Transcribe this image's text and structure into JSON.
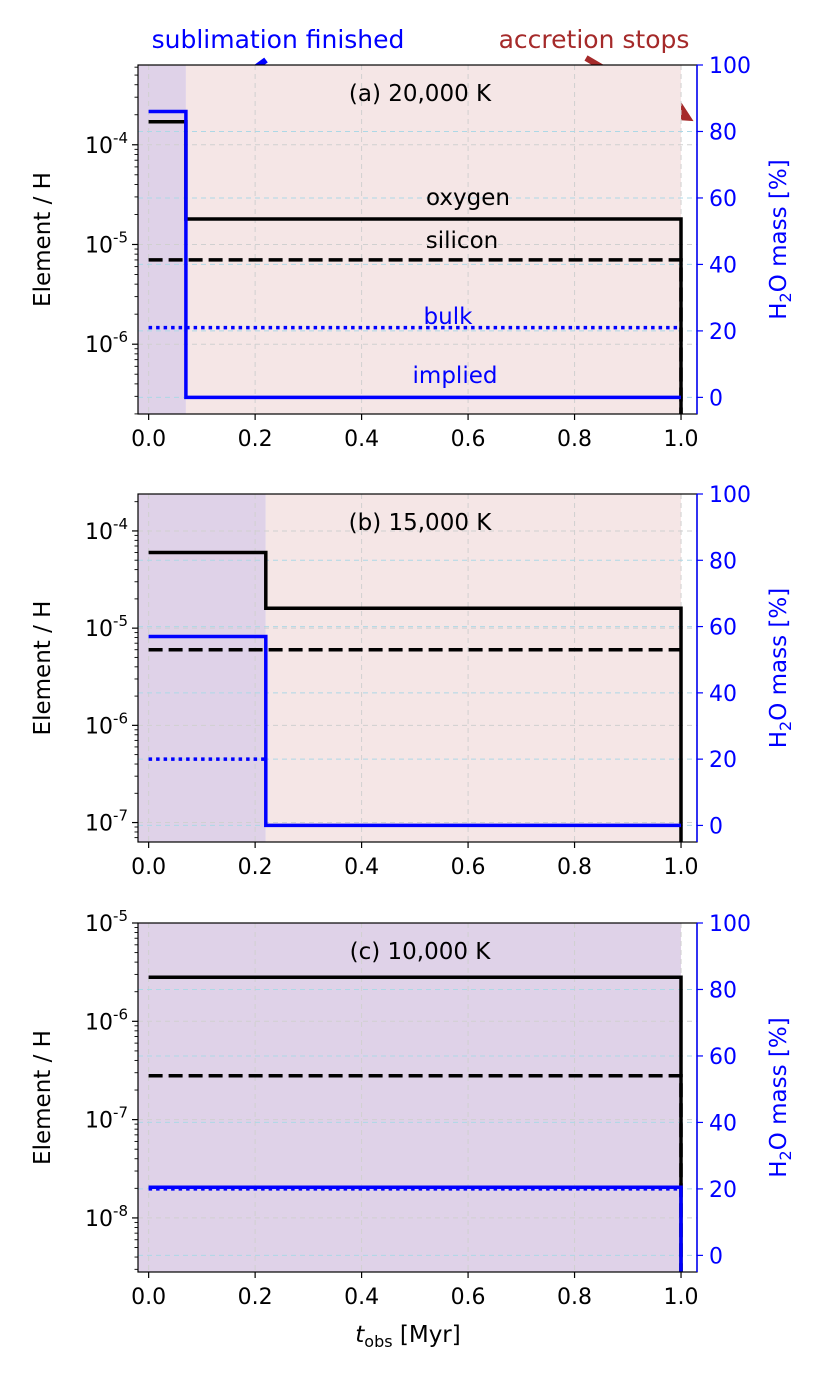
{
  "figure": {
    "xlabel_main": "t",
    "xlabel_sub": "obs",
    "xlabel_unit": " [Myr]",
    "ylabel_left": "Element / H",
    "ylabel_right_pre": "H",
    "ylabel_right_sub": "2",
    "ylabel_right_post": "O mass [%]",
    "x_ticks": [
      "0.0",
      "0.2",
      "0.4",
      "0.6",
      "0.8",
      "1.0"
    ],
    "right_ticks": [
      "0",
      "20",
      "40",
      "60",
      "80",
      "100"
    ]
  },
  "colors": {
    "black": "#000000",
    "blue": "#0000ff",
    "darkred": "#a52a2a",
    "purple_shade": "#dfd2e8",
    "pink_shade": "#f5e6e6",
    "grid": "#d0d0d0",
    "right_grid": "#add8e6"
  },
  "annotations": {
    "sublimation": "sublimation finished",
    "accretion": "accretion stops"
  },
  "chart_data": [
    {
      "type": "line",
      "title": "(a) 20,000 K",
      "xlim": [
        -0.02,
        1.03
      ],
      "ylim_left_log10": [
        -6.7,
        -3.2
      ],
      "ylim_right": [
        -5,
        100
      ],
      "left_ticks": [
        {
          "exp": "-4",
          "v": -4
        },
        {
          "exp": "-5",
          "v": -5
        },
        {
          "exp": "-6",
          "v": -6
        }
      ],
      "sublimation_end": 0.07,
      "accretion_stop": 1.0,
      "series": [
        {
          "name": "oxygen",
          "axis": "left",
          "style": "solid",
          "color": "black",
          "x": [
            0,
            0.07,
            0.07,
            1.0,
            1.0
          ],
          "y": [
            0.00017,
            0.00017,
            1.8e-05,
            1.8e-05,
            1e-08
          ]
        },
        {
          "name": "silicon",
          "axis": "left",
          "style": "dashed",
          "color": "black",
          "x": [
            0,
            1.0,
            1.0
          ],
          "y": [
            7e-06,
            7e-06,
            1e-08
          ]
        },
        {
          "name": "bulk",
          "axis": "right",
          "style": "dotted",
          "color": "blue",
          "x": [
            0,
            1.0
          ],
          "y": [
            21,
            21
          ]
        },
        {
          "name": "implied",
          "axis": "right",
          "style": "solid",
          "color": "blue",
          "x": [
            0,
            0.07,
            0.07,
            1.0
          ],
          "y": [
            86,
            86,
            0,
            0
          ]
        }
      ],
      "labels": [
        {
          "text": "oxygen",
          "color": "black"
        },
        {
          "text": "silicon",
          "color": "black"
        },
        {
          "text": "bulk",
          "color": "blue"
        },
        {
          "text": "implied",
          "color": "blue"
        }
      ]
    },
    {
      "type": "line",
      "title": "(b) 15,000 K",
      "xlim": [
        -0.02,
        1.03
      ],
      "ylim_left_log10": [
        -7.2,
        -3.62
      ],
      "ylim_right": [
        -5,
        100
      ],
      "left_ticks": [
        {
          "exp": "-4",
          "v": -4
        },
        {
          "exp": "-5",
          "v": -5
        },
        {
          "exp": "-6",
          "v": -6
        },
        {
          "exp": "-7",
          "v": -7
        }
      ],
      "sublimation_end": 0.22,
      "accretion_stop": 1.0,
      "series": [
        {
          "name": "oxygen",
          "axis": "left",
          "style": "solid",
          "color": "black",
          "x": [
            0,
            0.22,
            0.22,
            1.0,
            1.0
          ],
          "y": [
            6e-05,
            6e-05,
            1.6e-05,
            1.6e-05,
            1e-09
          ]
        },
        {
          "name": "silicon",
          "axis": "left",
          "style": "dashed",
          "color": "black",
          "x": [
            0,
            1.0
          ],
          "y": [
            6e-06,
            6e-06
          ]
        },
        {
          "name": "bulk",
          "axis": "right",
          "style": "dotted",
          "color": "blue",
          "x": [
            0,
            0.22
          ],
          "y": [
            20,
            20
          ]
        },
        {
          "name": "implied",
          "axis": "right",
          "style": "solid",
          "color": "blue",
          "x": [
            0,
            0.22,
            0.22,
            1.0
          ],
          "y": [
            57,
            57,
            0,
            0
          ]
        }
      ],
      "labels": []
    },
    {
      "type": "line",
      "title": "(c) 10,000 K",
      "xlim": [
        -0.02,
        1.03
      ],
      "ylim_left_log10": [
        -8.55,
        -5.0
      ],
      "ylim_right": [
        -5,
        100
      ],
      "left_ticks": [
        {
          "exp": "-5",
          "v": -5
        },
        {
          "exp": "-6",
          "v": -6
        },
        {
          "exp": "-7",
          "v": -7
        },
        {
          "exp": "-8",
          "v": -8
        }
      ],
      "sublimation_end": 1.0,
      "accretion_stop": 1.0,
      "series": [
        {
          "name": "oxygen",
          "axis": "left",
          "style": "solid",
          "color": "black",
          "x": [
            0,
            1.0,
            1.0
          ],
          "y": [
            2.8e-06,
            2.8e-06,
            1e-10
          ]
        },
        {
          "name": "silicon",
          "axis": "left",
          "style": "dashed",
          "color": "black",
          "x": [
            0,
            1.0,
            1.0
          ],
          "y": [
            2.8e-07,
            2.8e-07,
            1e-10
          ]
        },
        {
          "name": "bulk",
          "axis": "right",
          "style": "dotted",
          "color": "blue",
          "x": [
            0,
            1.0
          ],
          "y": [
            20,
            20
          ]
        },
        {
          "name": "implied",
          "axis": "right",
          "style": "solid",
          "color": "blue",
          "x": [
            0,
            1.0,
            1.0
          ],
          "y": [
            20.5,
            20.5,
            -10
          ]
        }
      ],
      "labels": []
    }
  ]
}
